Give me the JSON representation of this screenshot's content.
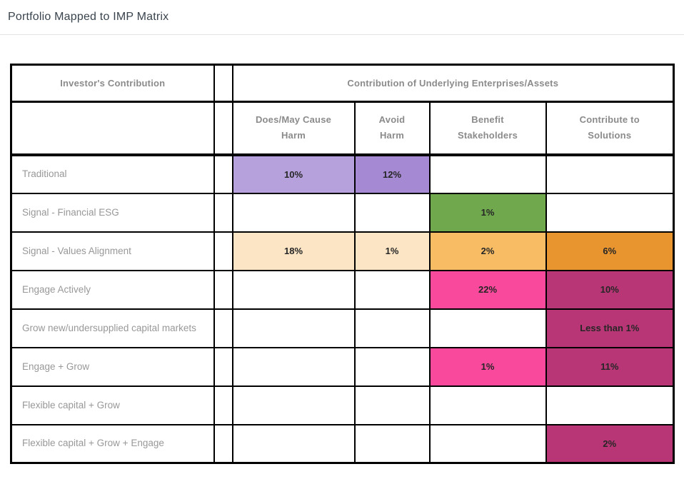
{
  "title": "Portfolio Mapped to IMP Matrix",
  "table": {
    "corner_header": "Investor's Contribution",
    "group_header": "Contribution of Underlying Enterprises/Assets",
    "columns": [
      "Does/May Cause\nHarm",
      "Avoid\nHarm",
      "Benefit\nStakeholders",
      "Contribute to\nSolutions"
    ],
    "rows": [
      {
        "label": "Traditional",
        "cells": [
          {
            "value": "10%",
            "color": "#b6a1dc"
          },
          {
            "value": "12%",
            "color": "#a689d3"
          },
          {
            "value": "",
            "color": ""
          },
          {
            "value": "",
            "color": ""
          }
        ]
      },
      {
        "label": "Signal - Financial ESG",
        "cells": [
          {
            "value": "",
            "color": ""
          },
          {
            "value": "",
            "color": ""
          },
          {
            "value": "1%",
            "color": "#70a84e"
          },
          {
            "value": "",
            "color": ""
          }
        ]
      },
      {
        "label": "Signal - Values Alignment",
        "cells": [
          {
            "value": "18%",
            "color": "#fbe5c5"
          },
          {
            "value": "1%",
            "color": "#fbe5c5"
          },
          {
            "value": "2%",
            "color": "#f8bd64"
          },
          {
            "value": "6%",
            "color": "#e9952f"
          }
        ]
      },
      {
        "label": "Engage Actively",
        "cells": [
          {
            "value": "",
            "color": ""
          },
          {
            "value": "",
            "color": ""
          },
          {
            "value": "22%",
            "color": "#f9499c"
          },
          {
            "value": "10%",
            "color": "#b83676"
          }
        ]
      },
      {
        "label": "Grow new/undersupplied capital markets",
        "cells": [
          {
            "value": "",
            "color": ""
          },
          {
            "value": "",
            "color": ""
          },
          {
            "value": "",
            "color": ""
          },
          {
            "value": "Less than 1%",
            "color": "#b83676"
          }
        ]
      },
      {
        "label": "Engage + Grow",
        "cells": [
          {
            "value": "",
            "color": ""
          },
          {
            "value": "",
            "color": ""
          },
          {
            "value": "1%",
            "color": "#f9499c"
          },
          {
            "value": "11%",
            "color": "#b83676"
          }
        ]
      },
      {
        "label": "Flexible capital + Grow",
        "cells": [
          {
            "value": "",
            "color": ""
          },
          {
            "value": "",
            "color": ""
          },
          {
            "value": "",
            "color": ""
          },
          {
            "value": "",
            "color": ""
          }
        ]
      },
      {
        "label": "Flexible capital + Grow + Engage",
        "cells": [
          {
            "value": "",
            "color": ""
          },
          {
            "value": "",
            "color": ""
          },
          {
            "value": "",
            "color": ""
          },
          {
            "value": "2%",
            "color": "#b83676"
          }
        ]
      }
    ]
  },
  "chart_data": {
    "type": "heatmap",
    "title": "Portfolio Mapped to IMP Matrix",
    "x_label": "Contribution of Underlying Enterprises/Assets",
    "y_label": "Investor's Contribution",
    "x_categories": [
      "Does/May Cause Harm",
      "Avoid Harm",
      "Benefit Stakeholders",
      "Contribute to Solutions"
    ],
    "y_categories": [
      "Traditional",
      "Signal - Financial ESG",
      "Signal - Values Alignment",
      "Engage Actively",
      "Grow new/undersupplied capital markets",
      "Engage + Grow",
      "Flexible capital + Grow",
      "Flexible capital + Grow + Engage"
    ],
    "values": [
      [
        "10%",
        "12%",
        "",
        ""
      ],
      [
        "",
        "",
        "1%",
        ""
      ],
      [
        "18%",
        "1%",
        "2%",
        "6%"
      ],
      [
        "",
        "",
        "22%",
        "10%"
      ],
      [
        "",
        "",
        "",
        "Less than 1%"
      ],
      [
        "",
        "",
        "1%",
        "11%"
      ],
      [
        "",
        "",
        "",
        ""
      ],
      [
        "",
        "",
        "",
        "2%"
      ]
    ],
    "cell_colors": [
      [
        "#b6a1dc",
        "#a689d3",
        "",
        ""
      ],
      [
        "",
        "",
        "#70a84e",
        ""
      ],
      [
        "#fbe5c5",
        "#fbe5c5",
        "#f8bd64",
        "#e9952f"
      ],
      [
        "",
        "",
        "#f9499c",
        "#b83676"
      ],
      [
        "",
        "",
        "",
        "#b83676"
      ],
      [
        "",
        "",
        "#f9499c",
        "#b83676"
      ],
      [
        "",
        "",
        "",
        ""
      ],
      [
        "",
        "",
        "",
        "#b83676"
      ]
    ]
  }
}
